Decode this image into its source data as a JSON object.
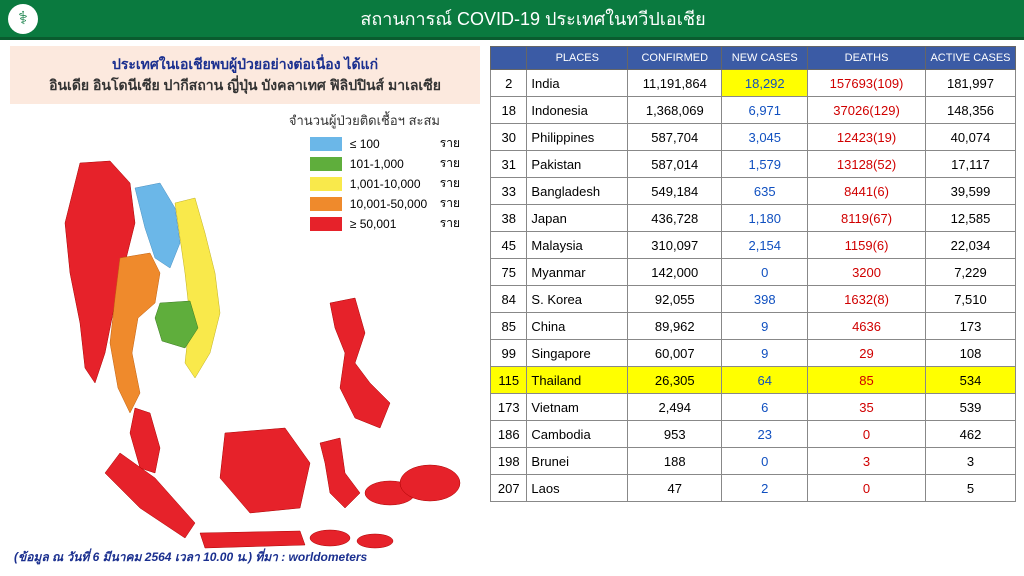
{
  "header": {
    "title": "สถานการณ์ COVID-19  ประเทศในทวีปเอเชีย"
  },
  "banner": {
    "line1": "ประเทศในเอเชียพบผู้ป่วยอย่างต่อเนื่อง  ได้แก่",
    "line2": "อินเดีย อินโดนีเซีย ปากีสถาน ญี่ปุ่น บังคลาเทศ ฟิลิปปินส์ มาเลเซีย"
  },
  "legend": {
    "title": "จำนวนผู้ป่วยติดเชื้อฯ สะสม",
    "unit": "ราย",
    "items": [
      {
        "color": "#6bb7e8",
        "label": "≤ 100"
      },
      {
        "color": "#5fae3c",
        "label": "101-1,000"
      },
      {
        "color": "#f9e94b",
        "label": "1,001-10,000"
      },
      {
        "color": "#ef8a2c",
        "label": "10,001-50,000"
      },
      {
        "color": "#e6222a",
        "label": "≥ 50,001"
      }
    ]
  },
  "map": {
    "colors": {
      "red": "#e6222a",
      "orange": "#ef8a2c",
      "yellow": "#f9e94b",
      "blue": "#6bb7e8",
      "green": "#5fae3c"
    }
  },
  "footnote": "(ข้อมูล ณ วันที่ 6 มีนาคม 2564 เวลา 10.00 น.) ที่มา : worldometers",
  "table": {
    "headers": [
      "",
      "PLACES",
      "CONFIRMED",
      "NEW  CASES",
      "DEATHS",
      "ACTIVE CASES"
    ],
    "rows": [
      {
        "rank": "2",
        "place": "India",
        "conf": "11,191,864",
        "new": "18,292",
        "deaths": "157693(109)",
        "active": "181,997",
        "new_hl": true
      },
      {
        "rank": "18",
        "place": "Indonesia",
        "conf": "1,368,069",
        "new": "6,971",
        "deaths": "37026(129)",
        "active": "148,356"
      },
      {
        "rank": "30",
        "place": "Philippines",
        "conf": "587,704",
        "new": "3,045",
        "deaths": "12423(19)",
        "active": "40,074"
      },
      {
        "rank": "31",
        "place": "Pakistan",
        "conf": "587,014",
        "new": "1,579",
        "deaths": "13128(52)",
        "active": "17,117"
      },
      {
        "rank": "33",
        "place": "Bangladesh",
        "conf": "549,184",
        "new": "635",
        "deaths": "8441(6)",
        "active": "39,599"
      },
      {
        "rank": "38",
        "place": "Japan",
        "conf": "436,728",
        "new": "1,180",
        "deaths": "8119(67)",
        "active": "12,585"
      },
      {
        "rank": "45",
        "place": "Malaysia",
        "conf": "310,097",
        "new": "2,154",
        "deaths": "1159(6)",
        "active": "22,034"
      },
      {
        "rank": "75",
        "place": "Myanmar",
        "conf": "142,000",
        "new": "0",
        "deaths": "3200",
        "active": "7,229"
      },
      {
        "rank": "84",
        "place": "S. Korea",
        "conf": "92,055",
        "new": "398",
        "deaths": "1632(8)",
        "active": "7,510"
      },
      {
        "rank": "85",
        "place": "China",
        "conf": "89,962",
        "new": "9",
        "deaths": "4636",
        "active": "173"
      },
      {
        "rank": "99",
        "place": "Singapore",
        "conf": "60,007",
        "new": "9",
        "deaths": "29",
        "active": "108"
      },
      {
        "rank": "115",
        "place": "Thailand",
        "conf": "26,305",
        "new": "64",
        "deaths": "85",
        "active": "534",
        "row_hl": true
      },
      {
        "rank": "173",
        "place": "Vietnam",
        "conf": "2,494",
        "new": "6",
        "deaths": "35",
        "active": "539"
      },
      {
        "rank": "186",
        "place": "Cambodia",
        "conf": "953",
        "new": "23",
        "deaths": "0",
        "active": "462"
      },
      {
        "rank": "198",
        "place": "Brunei",
        "conf": "188",
        "new": "0",
        "deaths": "3",
        "active": "3"
      },
      {
        "rank": "207",
        "place": "Laos",
        "conf": "47",
        "new": "2",
        "deaths": "0",
        "active": "5"
      }
    ]
  }
}
